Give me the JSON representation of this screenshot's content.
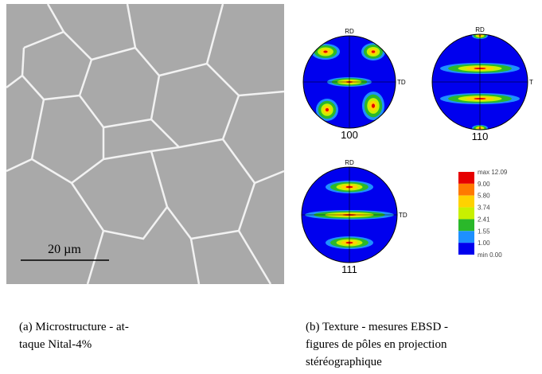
{
  "micrograph": {
    "scale_bar": "20 µm"
  },
  "pole_figures": [
    {
      "label": "100",
      "rd": "RD",
      "td": "TD"
    },
    {
      "label": "110",
      "rd": "RD",
      "td": "T"
    },
    {
      "label": "111",
      "rd": "RD",
      "td": "TD"
    }
  ],
  "legend": {
    "entries": [
      "max 12.09",
      "9.00",
      "5.80",
      "3.74",
      "2.41",
      "1.55",
      "1.00",
      "min 0.00"
    ],
    "colors": [
      "#e60000",
      "#ff7a00",
      "#ffd200",
      "#c8f000",
      "#2ab82a",
      "#1e90ff",
      "#0000ee"
    ]
  },
  "captions": {
    "a": [
      "(a) Microstructure - at-",
      "taque Nital-4%"
    ],
    "b": [
      "(b) Texture - mesures EBSD -",
      "figures de pôles en projection",
      "stéréographique"
    ]
  }
}
